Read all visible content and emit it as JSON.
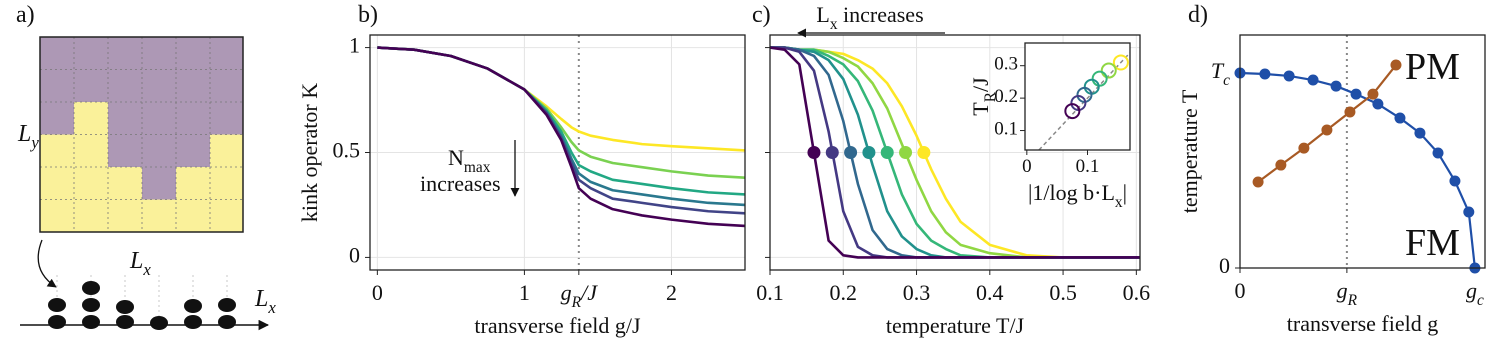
{
  "diagram": {
    "label": "a)",
    "height_label": "L_y",
    "width_label": "L_x",
    "chain_label": "L_x"
  },
  "chart_data": [
    {
      "type": "line",
      "label": "b)",
      "xlabel": "transverse field g/J",
      "ylabel": "kink operator K",
      "annotation": [
        "N_{max}",
        "increases"
      ],
      "xlim": [
        -0.05,
        2.5
      ],
      "ylim": [
        -0.06,
        1.06
      ],
      "xticks": [
        0,
        1,
        2,
        {
          "value": 1.37,
          "label": "g_R/J",
          "style": "dotted"
        }
      ],
      "yticks": [
        0,
        0.5,
        1
      ],
      "grid": true,
      "x": [
        0,
        0.25,
        0.5,
        0.75,
        1.0,
        1.15,
        1.25,
        1.32,
        1.37,
        1.45,
        1.6,
        1.8,
        2.0,
        2.25,
        2.5
      ],
      "series": [
        {
          "color": "#fde725",
          "values": [
            1,
            0.99,
            0.96,
            0.9,
            0.8,
            0.72,
            0.66,
            0.62,
            0.6,
            0.58,
            0.56,
            0.54,
            0.53,
            0.52,
            0.51
          ]
        },
        {
          "color": "#7ad151",
          "values": [
            1,
            0.99,
            0.96,
            0.9,
            0.8,
            0.71,
            0.62,
            0.55,
            0.51,
            0.48,
            0.45,
            0.43,
            0.41,
            0.39,
            0.38
          ]
        },
        {
          "color": "#22a884",
          "values": [
            1,
            0.99,
            0.96,
            0.9,
            0.8,
            0.7,
            0.6,
            0.5,
            0.44,
            0.41,
            0.37,
            0.35,
            0.33,
            0.31,
            0.3
          ]
        },
        {
          "color": "#2a788e",
          "values": [
            1,
            0.99,
            0.96,
            0.9,
            0.8,
            0.69,
            0.58,
            0.47,
            0.4,
            0.36,
            0.32,
            0.3,
            0.28,
            0.26,
            0.25
          ]
        },
        {
          "color": "#414487",
          "values": [
            1,
            0.99,
            0.96,
            0.9,
            0.8,
            0.69,
            0.57,
            0.45,
            0.37,
            0.33,
            0.28,
            0.26,
            0.24,
            0.22,
            0.21
          ]
        },
        {
          "color": "#440154",
          "values": [
            1,
            0.99,
            0.96,
            0.9,
            0.8,
            0.68,
            0.56,
            0.43,
            0.33,
            0.28,
            0.23,
            0.2,
            0.18,
            0.16,
            0.15
          ]
        }
      ]
    },
    {
      "type": "line",
      "label": "c)",
      "xlabel": "temperature T/J",
      "annotation": "L_x increases",
      "xlim": [
        0.1,
        0.605
      ],
      "ylim": [
        -0.06,
        1.06
      ],
      "xticks": [
        0.1,
        0.2,
        0.3,
        0.4,
        0.5,
        0.6
      ],
      "yticks": [
        0,
        0.5,
        1
      ],
      "ytick_labels": false,
      "grid": true,
      "x": [
        0.1,
        0.12,
        0.14,
        0.16,
        0.18,
        0.2,
        0.22,
        0.24,
        0.26,
        0.28,
        0.3,
        0.32,
        0.34,
        0.36,
        0.4,
        0.45,
        0.5,
        0.605
      ],
      "series": [
        {
          "color": "#fde725",
          "crossing": [
            0.31,
            0.5
          ],
          "values": [
            1,
            1,
            0.99,
            0.99,
            0.98,
            0.97,
            0.94,
            0.9,
            0.83,
            0.72,
            0.58,
            0.42,
            0.28,
            0.17,
            0.06,
            0.01,
            0,
            0
          ]
        },
        {
          "color": "#90d743",
          "crossing": [
            0.285,
            0.5
          ],
          "values": [
            1,
            1,
            0.99,
            0.99,
            0.98,
            0.95,
            0.91,
            0.83,
            0.71,
            0.54,
            0.37,
            0.22,
            0.12,
            0.06,
            0.02,
            0,
            0,
            0
          ]
        },
        {
          "color": "#35b779",
          "crossing": [
            0.26,
            0.5
          ],
          "values": [
            1,
            1,
            0.99,
            0.99,
            0.96,
            0.92,
            0.84,
            0.7,
            0.5,
            0.3,
            0.16,
            0.08,
            0.04,
            0.01,
            0,
            0,
            0,
            0
          ]
        },
        {
          "color": "#21918c",
          "crossing": [
            0.235,
            0.5
          ],
          "values": [
            1,
            1,
            0.99,
            0.98,
            0.94,
            0.85,
            0.68,
            0.44,
            0.22,
            0.1,
            0.04,
            0.01,
            0,
            0,
            0,
            0,
            0,
            0
          ]
        },
        {
          "color": "#31688e",
          "crossing": [
            0.21,
            0.5
          ],
          "values": [
            1,
            1,
            0.99,
            0.96,
            0.87,
            0.65,
            0.35,
            0.13,
            0.04,
            0.01,
            0,
            0,
            0,
            0,
            0,
            0,
            0,
            0
          ]
        },
        {
          "color": "#443983",
          "crossing": [
            0.185,
            0.5
          ],
          "values": [
            1,
            1,
            0.98,
            0.89,
            0.6,
            0.22,
            0.05,
            0.01,
            0,
            0,
            0,
            0,
            0,
            0,
            0,
            0,
            0,
            0
          ]
        },
        {
          "color": "#440154",
          "crossing": [
            0.16,
            0.5
          ],
          "values": [
            1,
            0.99,
            0.92,
            0.5,
            0.08,
            0.01,
            0,
            0,
            0,
            0,
            0,
            0,
            0,
            0,
            0,
            0,
            0,
            0
          ]
        }
      ],
      "inset": {
        "type": "scatter",
        "xlabel": "|1/log b·L_x|",
        "ylabel": "T_R/J",
        "xlim": [
          -0.003,
          0.17
        ],
        "ylim": [
          0.04,
          0.37
        ],
        "xticks": [
          0,
          0.1
        ],
        "yticks": [
          0.1,
          0.2,
          0.3
        ],
        "x": [
          0.155,
          0.135,
          0.12,
          0.107,
          0.095,
          0.085,
          0.075
        ],
        "values": [
          0.31,
          0.285,
          0.26,
          0.235,
          0.21,
          0.185,
          0.16
        ],
        "colors": [
          "#fde725",
          "#90d743",
          "#35b779",
          "#21918c",
          "#31688e",
          "#443983",
          "#440154"
        ],
        "fit_line": {
          "x": [
            0.02,
            0.17
          ],
          "y": [
            0.04,
            0.34
          ]
        }
      }
    },
    {
      "type": "line",
      "label": "d)",
      "xlabel": "transverse field g",
      "ylabel": "temperature T",
      "annotations": [
        "PM",
        "FM"
      ],
      "markers": true,
      "xlim": [
        0,
        1.043
      ],
      "ylim": [
        0,
        1.195
      ],
      "xticks": [
        0,
        {
          "value": 0.455,
          "label": "g_R",
          "style": "dotted"
        },
        {
          "value": 1,
          "label": "g_c"
        }
      ],
      "yticks": [
        0,
        {
          "value": 1,
          "label": "T_c"
        }
      ],
      "grid": false,
      "series": [
        {
          "color": "#1f4fa8",
          "x": [
            0,
            0.106,
            0.209,
            0.311,
            0.409,
            0.494,
            0.587,
            0.681,
            0.766,
            0.843,
            0.915,
            0.974,
            1.0
          ],
          "values": [
            1,
            0.995,
            0.985,
            0.964,
            0.933,
            0.892,
            0.841,
            0.769,
            0.692,
            0.59,
            0.446,
            0.287,
            0
          ]
        },
        {
          "color": "#a85a24",
          "x": [
            0.077,
            0.174,
            0.272,
            0.37,
            0.468,
            0.566,
            0.664
          ],
          "values": [
            0.441,
            0.528,
            0.615,
            0.708,
            0.8,
            0.892,
            1.041
          ]
        }
      ]
    }
  ]
}
